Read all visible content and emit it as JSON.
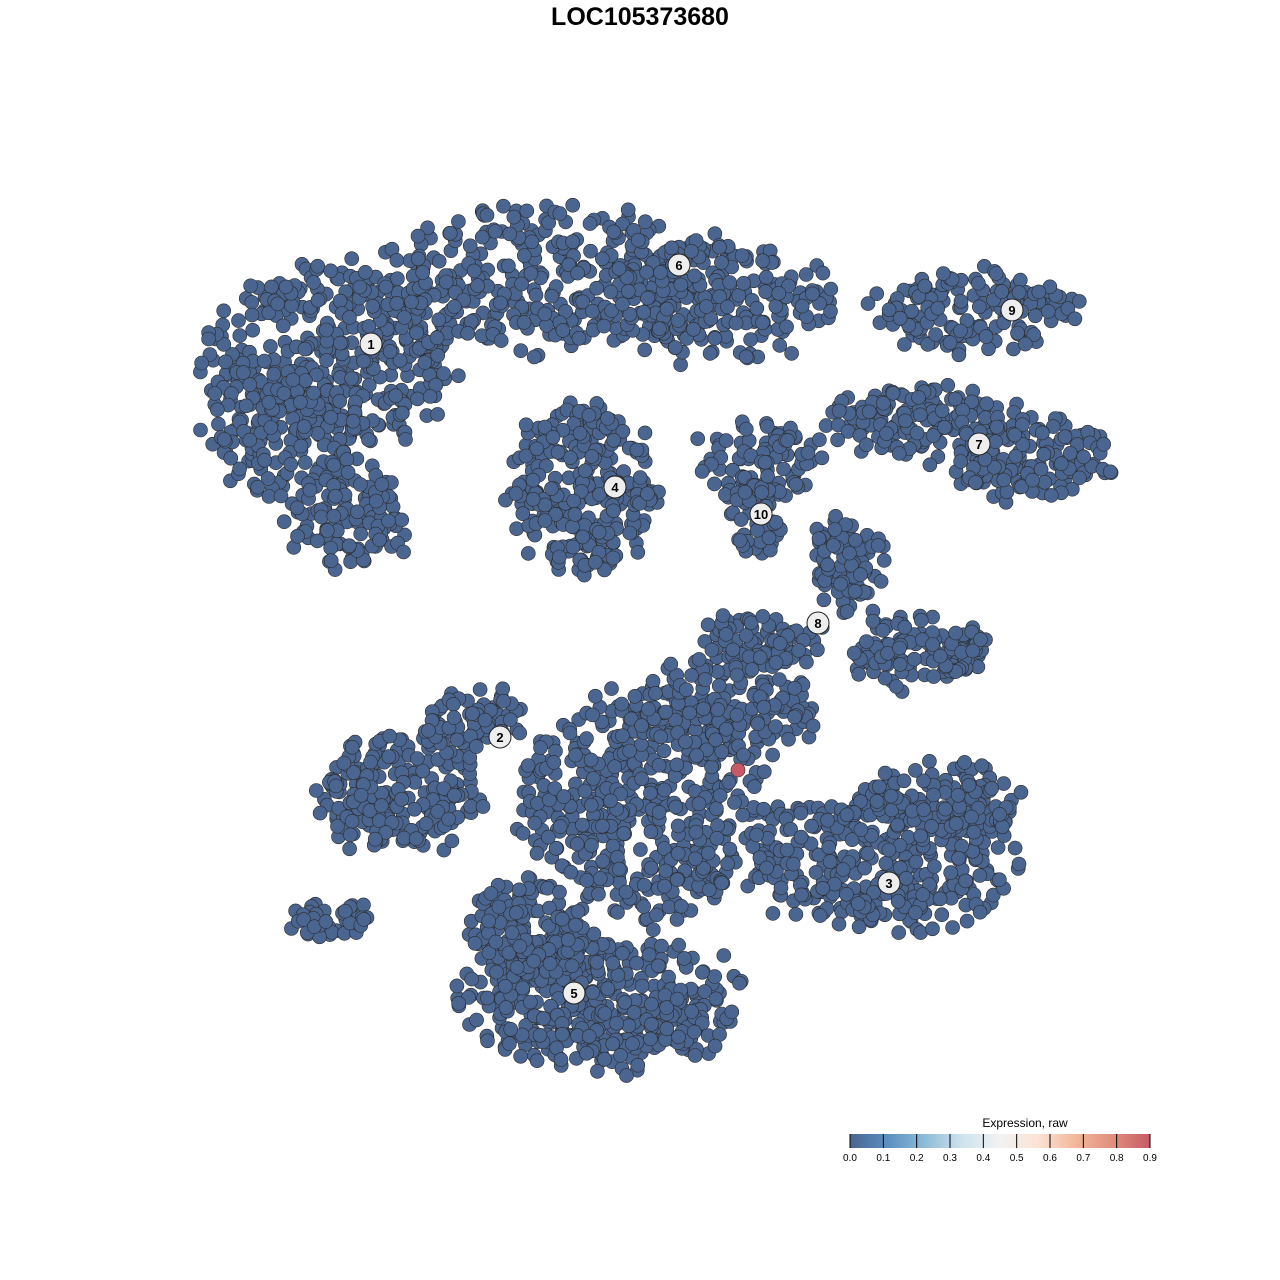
{
  "chart_data": {
    "type": "scatter",
    "title": "LOC105373680",
    "xlabel": "",
    "ylabel": "",
    "grid": false,
    "axes_visible": false,
    "point_color_default": "#4a6590",
    "point_edge_color": "#2b2b2b",
    "cluster_labels": [
      {
        "label": "1",
        "x": -26.9,
        "y": 29.6
      },
      {
        "label": "2",
        "x": -14.0,
        "y": -9.7
      },
      {
        "label": "3",
        "x": 24.9,
        "y": -24.3
      },
      {
        "label": "4",
        "x": -2.5,
        "y": 15.3
      },
      {
        "label": "5",
        "x": -6.6,
        "y": -35.3
      },
      {
        "label": "6",
        "x": 3.9,
        "y": 37.5
      },
      {
        "label": "7",
        "x": 33.9,
        "y": 19.6
      },
      {
        "label": "8",
        "x": 17.8,
        "y": 1.7
      },
      {
        "label": "9",
        "x": 37.2,
        "y": 33.0
      },
      {
        "label": "10",
        "x": 12.1,
        "y": 12.6
      }
    ],
    "highlighted_points": [
      {
        "x": 9.8,
        "y": -13.0,
        "value": 0.9
      }
    ],
    "background_expression": 0.0,
    "legend": {
      "title": "Expression, raw",
      "placement": "bottom-right",
      "ticks": [
        "0.0",
        "0.1",
        "0.2",
        "0.3",
        "0.4",
        "0.5",
        "0.6",
        "0.7",
        "0.8",
        "0.9"
      ],
      "range": [
        0,
        0.9
      ],
      "colors": [
        "#4a6590",
        "#5b8fc0",
        "#8dbcd8",
        "#cfe3ee",
        "#f2f2f2",
        "#fbe3d6",
        "#f4b89c",
        "#e08f7d",
        "#c85a68"
      ]
    }
  }
}
